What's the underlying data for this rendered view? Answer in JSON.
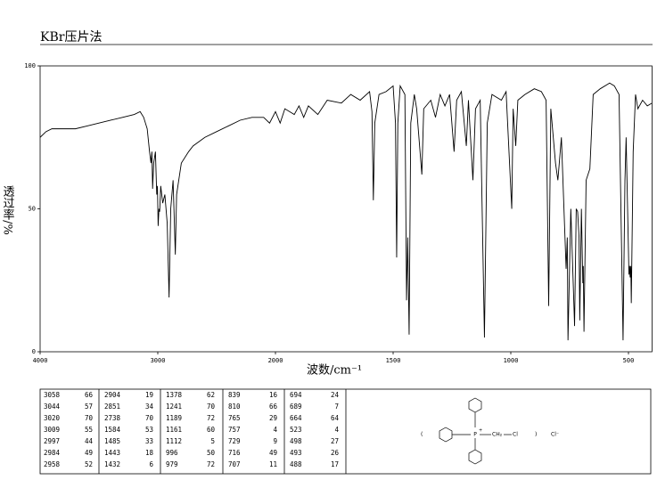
{
  "chart_data": {
    "type": "line",
    "title": "KBr压片法",
    "x_label": "波数/cm⁻¹",
    "y_label": "透过率/%",
    "xlim": [
      4000,
      400
    ],
    "xticks": [
      4000,
      3000,
      2000,
      1500,
      1000,
      500
    ],
    "ylim": [
      0,
      100
    ],
    "yticks": [
      0,
      50,
      100
    ],
    "color": "#000000",
    "x": [
      4000,
      3950,
      3900,
      3800,
      3700,
      3600,
      3500,
      3400,
      3300,
      3200,
      3150,
      3120,
      3090,
      3070,
      3058,
      3050,
      3044,
      3035,
      3020,
      3009,
      3003,
      2997,
      2990,
      2984,
      2975,
      2958,
      2940,
      2920,
      2904,
      2890,
      2870,
      2851,
      2840,
      2800,
      2738,
      2700,
      2600,
      2500,
      2400,
      2300,
      2200,
      2100,
      2050,
      2000,
      1980,
      1960,
      1920,
      1900,
      1880,
      1860,
      1820,
      1780,
      1720,
      1680,
      1640,
      1600,
      1590,
      1584,
      1578,
      1560,
      1530,
      1500,
      1490,
      1485,
      1480,
      1470,
      1450,
      1443,
      1438,
      1432,
      1425,
      1410,
      1400,
      1378,
      1370,
      1340,
      1320,
      1300,
      1280,
      1260,
      1241,
      1230,
      1210,
      1189,
      1180,
      1161,
      1150,
      1130,
      1112,
      1100,
      1080,
      1040,
      1020,
      996,
      990,
      979,
      970,
      940,
      900,
      870,
      850,
      839,
      830,
      810,
      800,
      785,
      765,
      760,
      757,
      745,
      729,
      722,
      716,
      710,
      707,
      700,
      694,
      692,
      689,
      680,
      664,
      650,
      620,
      580,
      560,
      540,
      523,
      515,
      510,
      498,
      495,
      493,
      490,
      488,
      480,
      470,
      460,
      440,
      420,
      400
    ],
    "values": [
      75,
      77,
      78,
      78,
      78,
      79,
      80,
      81,
      82,
      83,
      84,
      82,
      78,
      70,
      66,
      70,
      57,
      66,
      70,
      55,
      58,
      44,
      50,
      49,
      58,
      52,
      55,
      45,
      19,
      50,
      60,
      34,
      55,
      66,
      70,
      72,
      75,
      77,
      79,
      81,
      82,
      82,
      80,
      84,
      80,
      85,
      83,
      86,
      82,
      86,
      83,
      88,
      87,
      90,
      88,
      91,
      84,
      53,
      80,
      90,
      91,
      93,
      80,
      33,
      80,
      93,
      90,
      18,
      40,
      6,
      80,
      90,
      85,
      62,
      85,
      88,
      82,
      90,
      86,
      90,
      70,
      88,
      91,
      72,
      88,
      60,
      85,
      88,
      5,
      80,
      90,
      88,
      91,
      50,
      85,
      72,
      88,
      90,
      92,
      91,
      88,
      16,
      85,
      66,
      60,
      75,
      29,
      40,
      4,
      50,
      9,
      50,
      49,
      40,
      11,
      50,
      24,
      30,
      7,
      60,
      64,
      90,
      92,
      94,
      93,
      90,
      4,
      60,
      75,
      27,
      30,
      26,
      30,
      17,
      70,
      90,
      85,
      88,
      86,
      87
    ]
  },
  "peak_table": [
    [
      [
        3058,
        66
      ],
      [
        3044,
        57
      ],
      [
        3020,
        70
      ],
      [
        3009,
        55
      ],
      [
        2997,
        44
      ],
      [
        2984,
        49
      ],
      [
        2958,
        52
      ]
    ],
    [
      [
        2904,
        19
      ],
      [
        2851,
        34
      ],
      [
        2738,
        70
      ],
      [
        1584,
        53
      ],
      [
        1485,
        33
      ],
      [
        1443,
        18
      ],
      [
        1432,
        6
      ]
    ],
    [
      [
        1378,
        62
      ],
      [
        1241,
        70
      ],
      [
        1189,
        72
      ],
      [
        1161,
        60
      ],
      [
        1112,
        5
      ],
      [
        996,
        50
      ],
      [
        979,
        72
      ]
    ],
    [
      [
        839,
        16
      ],
      [
        810,
        66
      ],
      [
        765,
        29
      ],
      [
        757,
        4
      ],
      [
        729,
        9
      ],
      [
        716,
        49
      ],
      [
        707,
        11
      ]
    ],
    [
      [
        694,
        24
      ],
      [
        689,
        7
      ],
      [
        664,
        64
      ],
      [
        523,
        4
      ],
      [
        498,
        27
      ],
      [
        493,
        26
      ],
      [
        488,
        17
      ]
    ]
  ],
  "structure": {
    "open": "(",
    "phosphorus": "P",
    "charge": "+",
    "group": "CH₂",
    "chlorine": "Cl",
    "close": ")",
    "counterion": "Cl⁻"
  }
}
